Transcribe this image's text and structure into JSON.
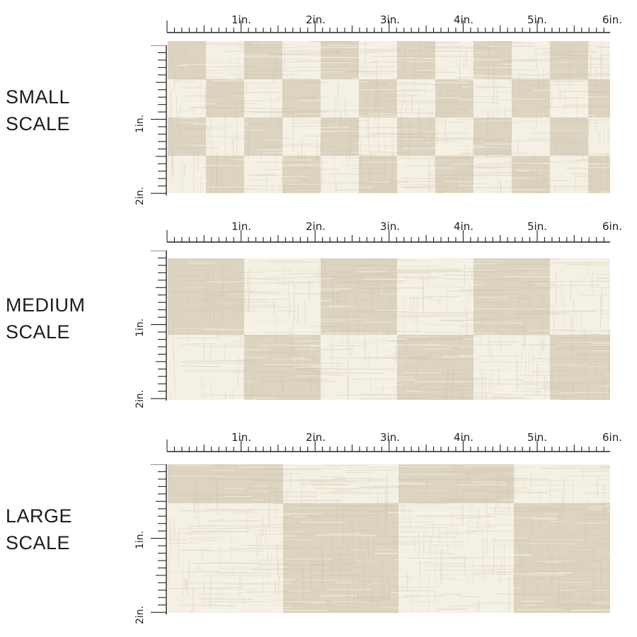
{
  "rulers": {
    "horizontal_labels": [
      "1in.",
      "2in.",
      "3in.",
      "4in.",
      "5in.",
      "6in."
    ],
    "vertical_labels": [
      "1in.",
      "2in."
    ]
  },
  "sections": [
    {
      "id": "small",
      "label_line1": "SMALL",
      "label_line2": "SCALE",
      "checks_per_inch": 2
    },
    {
      "id": "medium",
      "label_line1": "MEDIUM",
      "label_line2": "SCALE",
      "checks_per_inch": 1
    },
    {
      "id": "large",
      "label_line1": "LARGE",
      "label_line2": "SCALE",
      "checks_per_inch": 0.66
    }
  ],
  "colors": {
    "light_square": "#f4f0e4",
    "dark_square": "#dcd3c0",
    "texture": "#c9bda6",
    "ruler": "#222222"
  }
}
